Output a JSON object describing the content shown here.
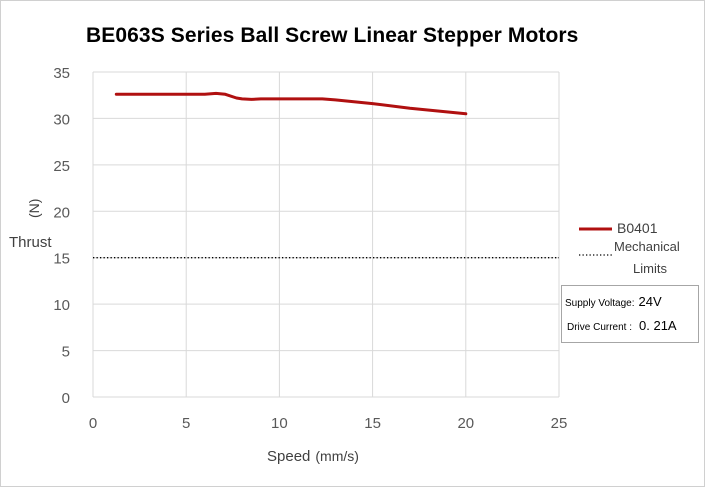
{
  "chart_data": {
    "type": "line",
    "title": "BE063S Series Ball Screw Linear Stepper Motors",
    "xlabel": "Speed",
    "xlabel_unit": "(mm/s)",
    "ylabel": "Thrust",
    "ylabel_unit": "(N)",
    "xlim": [
      0,
      25
    ],
    "ylim": [
      0,
      35
    ],
    "xticks": [
      0,
      5,
      10,
      15,
      20,
      25
    ],
    "yticks": [
      0,
      5,
      10,
      15,
      20,
      25,
      30,
      35
    ],
    "grid": true,
    "legend_position": "right",
    "series": [
      {
        "name": "B0401",
        "color": "#b01010",
        "style": "solid",
        "x": [
          1.25,
          6.0,
          6.6,
          7.1,
          7.7,
          8.0,
          8.5,
          9.0,
          10.0,
          11.0,
          12.3,
          13.0,
          15.0,
          17.0,
          20.0
        ],
        "y": [
          32.6,
          32.6,
          32.7,
          32.6,
          32.2,
          32.1,
          32.05,
          32.1,
          32.1,
          32.1,
          32.1,
          32.0,
          31.6,
          31.1,
          30.5
        ]
      },
      {
        "name": "Mechanical Limits",
        "color": "#000000",
        "style": "dotted",
        "x": [
          0,
          25
        ],
        "y": [
          15,
          15
        ]
      }
    ],
    "annotations": {
      "supply_voltage_label": "Supply Voltage:",
      "supply_voltage_value": "24V",
      "drive_current_label": "Drive Current :",
      "drive_current_value": "0. 21A"
    }
  },
  "legend": {
    "line1": "B0401",
    "line2a": "Mechanical",
    "line2b": "Limits"
  }
}
